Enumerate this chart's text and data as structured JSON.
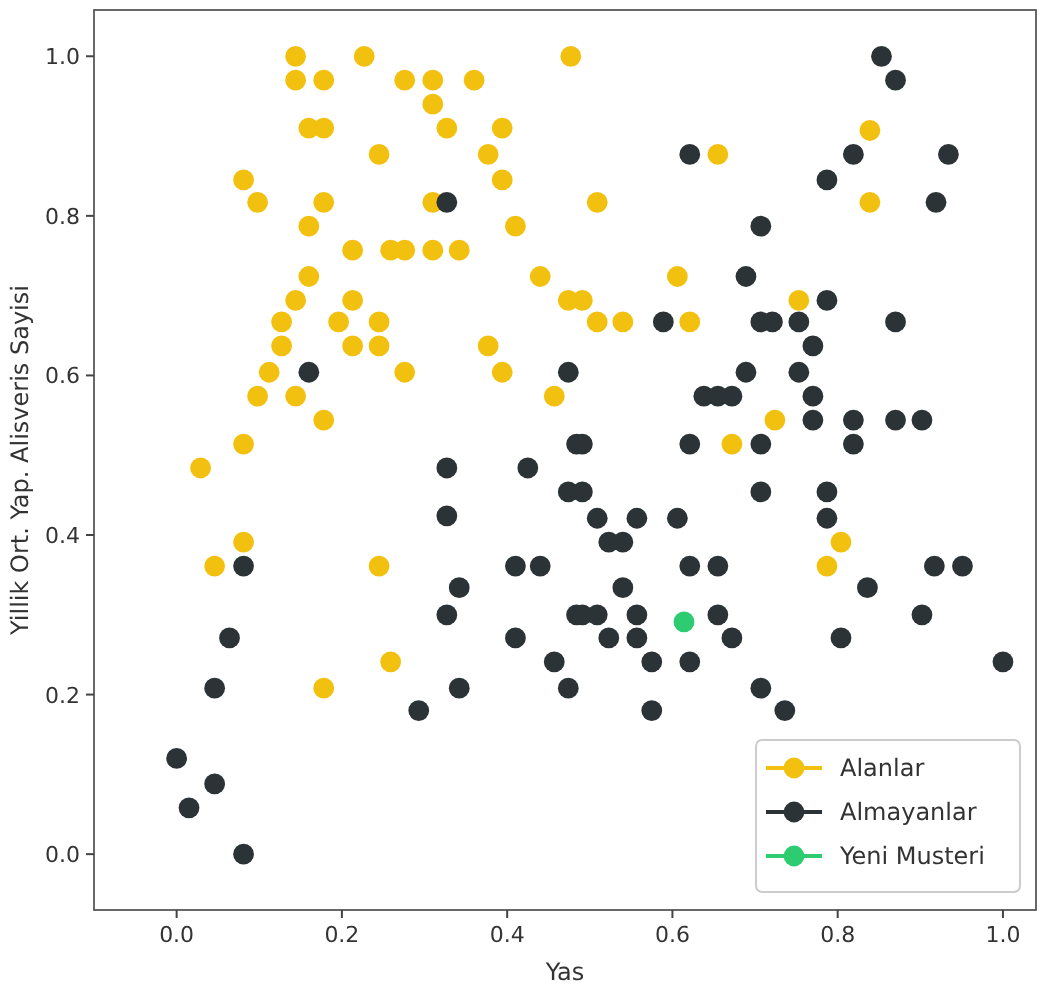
{
  "chart_data": {
    "type": "scatter",
    "xlabel": "Yas",
    "ylabel": "Yillik Ort. Yap. Alisveris Sayisi",
    "xlim": [
      -0.1,
      1.04
    ],
    "ylim": [
      -0.07,
      1.058
    ],
    "xticks": [
      {
        "value": 0,
        "label": "0.0"
      },
      {
        "value": 0.2,
        "label": "0.2"
      },
      {
        "value": 0.4,
        "label": "0.4"
      },
      {
        "value": 0.6,
        "label": "0.6"
      },
      {
        "value": 0.8,
        "label": "0.8"
      },
      {
        "value": 1,
        "label": "1.0"
      }
    ],
    "yticks": [
      {
        "value": 0,
        "label": "0.0"
      },
      {
        "value": 0.2,
        "label": "0.2"
      },
      {
        "value": 0.4,
        "label": "0.4"
      },
      {
        "value": 0.6,
        "label": "0.6"
      },
      {
        "value": 0.8,
        "label": "0.8"
      },
      {
        "value": 1,
        "label": "1.0"
      }
    ],
    "grid": false,
    "legend": "bottom right",
    "marker": "circle",
    "series": [
      {
        "name": "Alanlar",
        "color": "#f2c10f",
        "x": [
          0.144,
          0.227,
          0.477,
          0.144,
          0.178,
          0.276,
          0.31,
          0.36,
          0.31,
          0.16,
          0.178,
          0.327,
          0.394,
          0.245,
          0.377,
          0.081,
          0.394,
          0.098,
          0.178,
          0.31,
          0.16,
          0.41,
          0.213,
          0.259,
          0.276,
          0.31,
          0.342,
          0.16,
          0.44,
          0.144,
          0.213,
          0.474,
          0.127,
          0.196,
          0.245,
          0.127,
          0.213,
          0.245,
          0.377,
          0.112,
          0.276,
          0.394,
          0.098,
          0.144,
          0.457,
          0.178,
          0.081,
          0.029,
          0.081,
          0.046,
          0.245,
          0.178,
          0.259,
          0.655,
          0.839,
          0.509,
          0.839,
          0.606,
          0.491,
          0.753,
          0.509,
          0.54,
          0.621,
          0.724,
          0.672,
          0.804,
          0.787
        ],
        "values": [
          1.0,
          1.0,
          1.0,
          0.97,
          0.97,
          0.97,
          0.97,
          0.97,
          0.94,
          0.91,
          0.91,
          0.91,
          0.91,
          0.877,
          0.877,
          0.845,
          0.845,
          0.817,
          0.817,
          0.817,
          0.787,
          0.787,
          0.757,
          0.757,
          0.757,
          0.757,
          0.757,
          0.724,
          0.724,
          0.694,
          0.694,
          0.694,
          0.667,
          0.667,
          0.667,
          0.637,
          0.637,
          0.637,
          0.637,
          0.604,
          0.604,
          0.604,
          0.574,
          0.574,
          0.574,
          0.544,
          0.514,
          0.484,
          0.391,
          0.361,
          0.361,
          0.208,
          0.241,
          0.877,
          0.907,
          0.817,
          0.817,
          0.724,
          0.694,
          0.694,
          0.667,
          0.667,
          0.667,
          0.544,
          0.514,
          0.391,
          0.361
        ]
      },
      {
        "name": "Almayanlar",
        "color": "#2b3336",
        "x": [
          0.327,
          0.16,
          0.474,
          0.327,
          0.425,
          0.484,
          0.327,
          0.474,
          0.081,
          0.41,
          0.44,
          0.342,
          0.327,
          0.064,
          0.41,
          0.457,
          0.046,
          0.342,
          0.474,
          0.293,
          0.0,
          0.015,
          0.046,
          0.081,
          0.484,
          0.853,
          0.87,
          0.621,
          0.819,
          0.934,
          0.787,
          0.919,
          0.707,
          0.689,
          0.787,
          0.589,
          0.707,
          0.721,
          0.753,
          0.87,
          0.77,
          0.689,
          0.753,
          0.638,
          0.655,
          0.672,
          0.77,
          0.77,
          0.819,
          0.87,
          0.902,
          0.491,
          0.621,
          0.707,
          0.819,
          0.491,
          0.707,
          0.787,
          0.509,
          0.557,
          0.606,
          0.787,
          0.523,
          0.54,
          0.621,
          0.655,
          0.917,
          0.951,
          0.54,
          0.836,
          0.491,
          0.509,
          0.557,
          0.655,
          0.902,
          0.523,
          0.557,
          0.672,
          0.804,
          0.575,
          0.621,
          1.0,
          0.707,
          0.575,
          0.736
        ],
        "values": [
          0.817,
          0.604,
          0.604,
          0.484,
          0.484,
          0.514,
          0.424,
          0.454,
          0.361,
          0.361,
          0.361,
          0.334,
          0.3,
          0.271,
          0.271,
          0.241,
          0.208,
          0.208,
          0.208,
          0.18,
          0.12,
          0.058,
          0.088,
          0.0,
          0.3,
          1.0,
          0.97,
          0.877,
          0.877,
          0.877,
          0.845,
          0.817,
          0.787,
          0.724,
          0.694,
          0.667,
          0.667,
          0.667,
          0.667,
          0.667,
          0.637,
          0.604,
          0.604,
          0.574,
          0.574,
          0.574,
          0.574,
          0.544,
          0.544,
          0.544,
          0.544,
          0.514,
          0.514,
          0.514,
          0.514,
          0.454,
          0.454,
          0.454,
          0.421,
          0.421,
          0.421,
          0.421,
          0.391,
          0.391,
          0.361,
          0.361,
          0.361,
          0.361,
          0.334,
          0.334,
          0.3,
          0.3,
          0.3,
          0.3,
          0.3,
          0.271,
          0.271,
          0.271,
          0.271,
          0.241,
          0.241,
          0.241,
          0.208,
          0.18,
          0.18
        ]
      },
      {
        "name": "Yeni Musteri",
        "color": "#2ecc71",
        "x": [
          0.614
        ],
        "values": [
          0.291
        ]
      }
    ]
  }
}
